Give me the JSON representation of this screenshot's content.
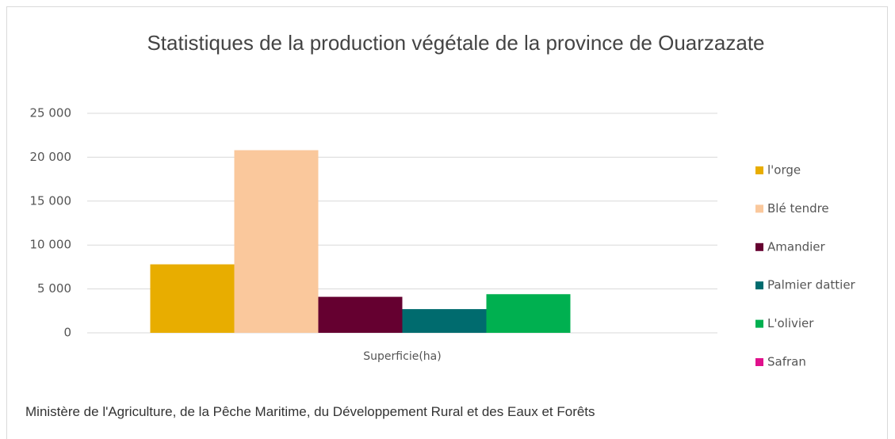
{
  "chart_data": {
    "type": "bar",
    "title": "Statistiques de la production végétale de la province de Ouarzazate",
    "categories": [
      "Superficie(ha)"
    ],
    "series": [
      {
        "name": "l'orge",
        "color": "#e8ad00",
        "values": [
          7800
        ]
      },
      {
        "name": "Blé tendre",
        "color": "#fac89c",
        "values": [
          20800
        ]
      },
      {
        "name": "Amandier",
        "color": "#650030",
        "values": [
          4100
        ]
      },
      {
        "name": "Palmier dattier",
        "color": "#006b6e",
        "values": [
          2700
        ]
      },
      {
        "name": "L'olivier",
        "color": "#00b050",
        "values": [
          4400
        ]
      },
      {
        "name": "Safran",
        "color": "#e0118c",
        "values": [
          0
        ]
      }
    ],
    "ylim": [
      0,
      25000
    ],
    "yticks": [
      0,
      {
        "value": 5000,
        "label": "5 000"
      },
      {
        "value": 10000,
        "label": "10 000"
      },
      {
        "value": 15000,
        "label": "15 000"
      },
      {
        "value": 20000,
        "label": "20 000"
      },
      {
        "value": 25000,
        "label": "25 000"
      }
    ],
    "grid": true,
    "legend": "right",
    "source": "Ministère de l'Agriculture, de la Pêche Maritime, du Développement Rural et des Eaux et Forêts"
  }
}
